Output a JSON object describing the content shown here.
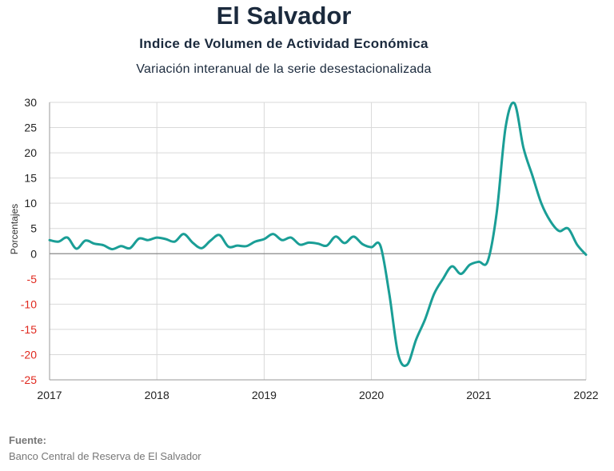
{
  "header": {
    "title": "El Salvador",
    "subtitle": "Indice de Volumen de  Actividad Económica",
    "subtitle2": "Variación interanual de la serie desestacionalizada"
  },
  "footer": {
    "source_label": "Fuente:",
    "source_text": "Banco Central de Reserva de El Salvador"
  },
  "colors": {
    "line": "#1a9e96",
    "positive_tick": "#222222",
    "negative_tick": "#e0281e",
    "grid": "#d9d9d9",
    "zero_line": "#888888"
  },
  "chart_data": {
    "type": "line",
    "ylabel": "Porcentajes",
    "ylim": [
      -25,
      30
    ],
    "y_ticks": [
      30,
      25,
      20,
      15,
      10,
      5,
      0,
      -5,
      -10,
      -15,
      -20,
      -25
    ],
    "xlim": [
      2017,
      2022
    ],
    "x_ticks": [
      "2017",
      "2018",
      "2019",
      "2020",
      "2021",
      "2022"
    ],
    "grid": true,
    "series": [
      {
        "x": [
          "2017-01",
          "2017-02",
          "2017-03",
          "2017-04",
          "2017-05",
          "2017-06",
          "2017-07",
          "2017-08",
          "2017-09",
          "2017-10",
          "2017-11",
          "2017-12",
          "2018-01",
          "2018-02",
          "2018-03",
          "2018-04",
          "2018-05",
          "2018-06",
          "2018-07",
          "2018-08",
          "2018-09",
          "2018-10",
          "2018-11",
          "2018-12",
          "2019-01",
          "2019-02",
          "2019-03",
          "2019-04",
          "2019-05",
          "2019-06",
          "2019-07",
          "2019-08",
          "2019-09",
          "2019-10",
          "2019-11",
          "2019-12",
          "2020-01",
          "2020-02",
          "2020-03",
          "2020-04",
          "2020-05",
          "2020-06",
          "2020-07",
          "2020-08",
          "2020-09",
          "2020-10",
          "2020-11",
          "2020-12",
          "2021-01",
          "2021-02",
          "2021-03",
          "2021-04",
          "2021-05",
          "2021-06",
          "2021-07",
          "2021-08",
          "2021-09",
          "2021-10",
          "2021-11",
          "2021-12",
          "2022-01"
        ],
        "values": [
          2.7,
          2.4,
          3.2,
          1.0,
          2.6,
          2.0,
          1.7,
          0.9,
          1.5,
          1.1,
          3.0,
          2.7,
          3.2,
          2.9,
          2.4,
          3.9,
          2.2,
          1.1,
          2.6,
          3.7,
          1.4,
          1.6,
          1.5,
          2.4,
          2.9,
          3.9,
          2.7,
          3.2,
          1.8,
          2.2,
          2.0,
          1.6,
          3.4,
          2.1,
          3.4,
          1.9,
          1.3,
          1.6,
          -8.0,
          -20.0,
          -22.0,
          -17.0,
          -13.0,
          -8.0,
          -5.0,
          -2.5,
          -4.0,
          -2.2,
          -1.6,
          -1.5,
          8.0,
          25.0,
          29.8,
          21.0,
          15.5,
          10.0,
          6.5,
          4.5,
          5.0,
          1.8,
          -0.2
        ]
      }
    ]
  }
}
